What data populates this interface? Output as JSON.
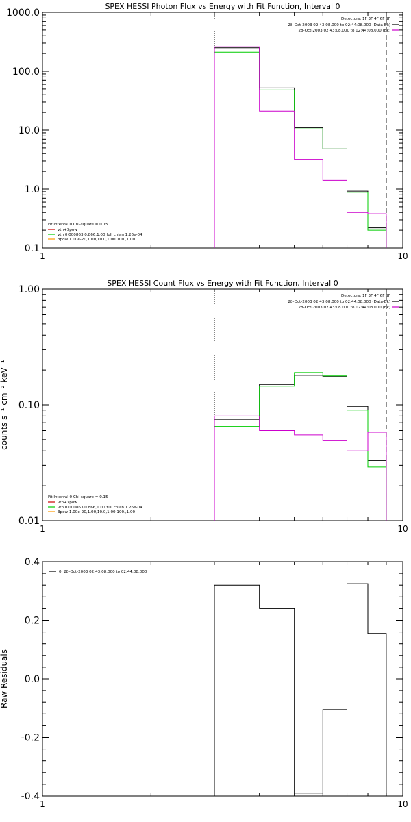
{
  "chart_data": [
    {
      "type": "line",
      "title": "SPEX HESSI Photon Flux vs Energy with Fit Function, Interval 0",
      "ylabel": "",
      "xlabel": "",
      "x_scale": "log",
      "y_scale": "log",
      "xlim": [
        1,
        10
      ],
      "ylim": [
        0.1,
        1000
      ],
      "xticks": [
        1,
        10
      ],
      "xtick_labels": [
        "1",
        "10"
      ],
      "yticks": [
        0.1,
        1,
        10,
        100,
        1000
      ],
      "ytick_labels": [
        "0.1",
        "1.0",
        "10.0",
        "100.0",
        "1000.0"
      ],
      "vlines": [
        {
          "x": 3.0,
          "style": "dotted"
        },
        {
          "x": 9.0,
          "style": "dashed"
        }
      ],
      "legend_top_right": {
        "detectors": "Detectors: 1F 3F 4F 6F 9F",
        "entries": [
          {
            "label": "28-Oct-2003 02:43:08.000 to 02:44:08.000 (Data-Bk)",
            "color": "#000000"
          },
          {
            "label": "28-Oct-2003 02:43:08.000 to 02:44:08.000 (Bk)",
            "color": "#cc00cc"
          }
        ]
      },
      "legend_bottom_left": {
        "fit_line": "Fit Interval 0   Chi-square = 0.15",
        "entries": [
          {
            "label": "vth+3pow",
            "color": "#cc0000"
          },
          {
            "label": "vth 0.000863,0.866,1.00  full chian 1.26e-04",
            "color": "#00cc00"
          },
          {
            "label": "3pow 1.00e-20,1.00,10.0,1.00,100.,1.00",
            "color": "#ff9900"
          }
        ]
      },
      "bin_edges": [
        3.0,
        4.0,
        5.0,
        6.0,
        7.0,
        8.0,
        9.0
      ],
      "series": [
        {
          "color": "#000000",
          "values": [
            250,
            52,
            11,
            4.8,
            0.92,
            0.22
          ]
        },
        {
          "color": "#00cc00",
          "values": [
            210,
            48,
            10.5,
            4.8,
            0.88,
            0.2
          ]
        },
        {
          "color": "#cc00cc",
          "values": [
            260,
            21,
            3.2,
            1.4,
            0.4,
            0.38
          ]
        }
      ]
    },
    {
      "type": "line",
      "title": "SPEX HESSI Count Flux vs Energy with Fit Function, Interval 0",
      "ylabel": "counts s⁻¹ cm⁻² keV⁻¹",
      "xlabel": "",
      "x_scale": "log",
      "y_scale": "log",
      "xlim": [
        1,
        10
      ],
      "ylim": [
        0.01,
        1
      ],
      "xticks": [
        1,
        10
      ],
      "xtick_labels": [
        "1",
        "10"
      ],
      "yticks": [
        0.01,
        0.1,
        1
      ],
      "ytick_labels": [
        "0.01",
        "0.10",
        "1.00"
      ],
      "vlines": [
        {
          "x": 3.0,
          "style": "dotted"
        },
        {
          "x": 9.0,
          "style": "dashed"
        }
      ],
      "legend_top_right": {
        "detectors": "Detectors: 1F 3F 4F 6F 9F",
        "entries": [
          {
            "label": "28-Oct-2003 02:43:08.000 to 02:44:08.000 (Data-Bk)",
            "color": "#000000"
          },
          {
            "label": "28-Oct-2003 02:43:08.000 to 02:44:08.000 (Bk)",
            "color": "#cc00cc"
          }
        ]
      },
      "legend_bottom_left": {
        "fit_line": "Fit Interval 0   Chi-square = 0.15",
        "entries": [
          {
            "label": "vth+3pow",
            "color": "#cc0000"
          },
          {
            "label": "vth 0.000863,0.866,1.00  full chian 1.26e-04",
            "color": "#00cc00"
          },
          {
            "label": "3pow 1.00e-20,1.00,10.0,1.00,100.,1.00",
            "color": "#ff9900"
          }
        ]
      },
      "bin_edges": [
        3.0,
        4.0,
        5.0,
        6.0,
        7.0,
        8.0,
        9.0
      ],
      "series": [
        {
          "color": "#000000",
          "values": [
            0.075,
            0.15,
            0.18,
            0.175,
            0.097,
            0.033
          ]
        },
        {
          "color": "#00cc00",
          "values": [
            0.065,
            0.145,
            0.19,
            0.178,
            0.09,
            0.029
          ]
        },
        {
          "color": "#cc00cc",
          "values": [
            0.08,
            0.06,
            0.055,
            0.049,
            0.04,
            0.058
          ]
        }
      ]
    },
    {
      "type": "line",
      "title": "",
      "ylabel": "Raw Residuals",
      "xlabel": "",
      "x_scale": "log",
      "y_scale": "linear",
      "xlim": [
        1,
        10
      ],
      "ylim": [
        -0.4,
        0.4
      ],
      "xticks": [
        1,
        10
      ],
      "xtick_labels": [
        "1",
        "10"
      ],
      "yticks": [
        -0.4,
        -0.2,
        0.0,
        0.2,
        0.4
      ],
      "ytick_labels": [
        "-0.4",
        "-0.2",
        "0.0",
        "0.2",
        "0.4"
      ],
      "vlines": [],
      "legend_top_left": {
        "entries": [
          {
            "label": "0. 28-Oct-2003 02:43:08.000 to 02:44:08.000",
            "color": "#000000"
          }
        ]
      },
      "bin_edges": [
        3.0,
        4.0,
        5.0,
        6.0,
        7.0,
        8.0,
        9.0
      ],
      "series": [
        {
          "color": "#000000",
          "values": [
            0.32,
            0.24,
            -0.39,
            -0.105,
            0.325,
            0.155
          ]
        }
      ]
    }
  ]
}
